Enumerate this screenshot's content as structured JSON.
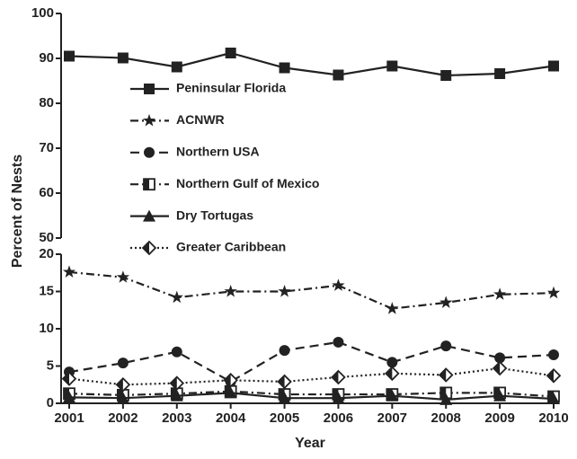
{
  "chart_data": [
    {
      "type": "line",
      "ylabel": "Percent of Nests",
      "x": [
        2001,
        2002,
        2003,
        2004,
        2005,
        2006,
        2007,
        2008,
        2009,
        2010
      ],
      "xlim": [
        2001,
        2010
      ],
      "ylim": [
        50,
        100
      ],
      "yticks": [
        50,
        60,
        70,
        80,
        90,
        100
      ],
      "series": [
        {
          "name": "Peninsular Florida",
          "color": "#222222",
          "marker": "square",
          "dash": "solid",
          "values": [
            90.5,
            90.1,
            88.1,
            91.2,
            87.9,
            86.3,
            88.3,
            86.2,
            86.6,
            88.3
          ]
        }
      ]
    },
    {
      "type": "line",
      "xlabel": "Year",
      "x": [
        2001,
        2002,
        2003,
        2004,
        2005,
        2006,
        2007,
        2008,
        2009,
        2010
      ],
      "xlim": [
        2001,
        2010
      ],
      "xticks": [
        2001,
        2002,
        2003,
        2004,
        2005,
        2006,
        2007,
        2008,
        2009,
        2010
      ],
      "ylim": [
        0,
        20
      ],
      "yticks": [
        0,
        5,
        10,
        15,
        20
      ],
      "series": [
        {
          "name": "ACNWR",
          "color": "#222222",
          "marker": "star",
          "dash": "dashdot",
          "values": [
            17.6,
            16.9,
            14.2,
            15.0,
            15.0,
            15.8,
            12.7,
            13.5,
            14.6,
            14.8
          ]
        },
        {
          "name": "Northern USA",
          "color": "#222222",
          "marker": "circle",
          "dash": "dashed",
          "values": [
            4.2,
            5.4,
            6.9,
            2.9,
            7.1,
            8.2,
            5.5,
            7.7,
            6.1,
            6.5
          ]
        },
        {
          "name": "Northern Gulf of Mexico",
          "color": "#222222",
          "marker": "halfsquare",
          "dash": "dashdot",
          "values": [
            1.3,
            1.1,
            1.3,
            1.6,
            1.2,
            1.2,
            1.2,
            1.4,
            1.4,
            0.9
          ]
        },
        {
          "name": "Dry Tortugas",
          "color": "#222222",
          "marker": "triangle",
          "dash": "solid",
          "values": [
            0.8,
            0.7,
            1.0,
            1.4,
            0.7,
            0.7,
            1.0,
            0.5,
            1.0,
            0.6
          ]
        },
        {
          "name": "Greater Caribbean",
          "color": "#222222",
          "marker": "halfdiamond",
          "dash": "dotted",
          "values": [
            3.3,
            2.5,
            2.7,
            3.1,
            2.9,
            3.5,
            4.0,
            3.8,
            4.7,
            3.7
          ]
        }
      ]
    }
  ]
}
